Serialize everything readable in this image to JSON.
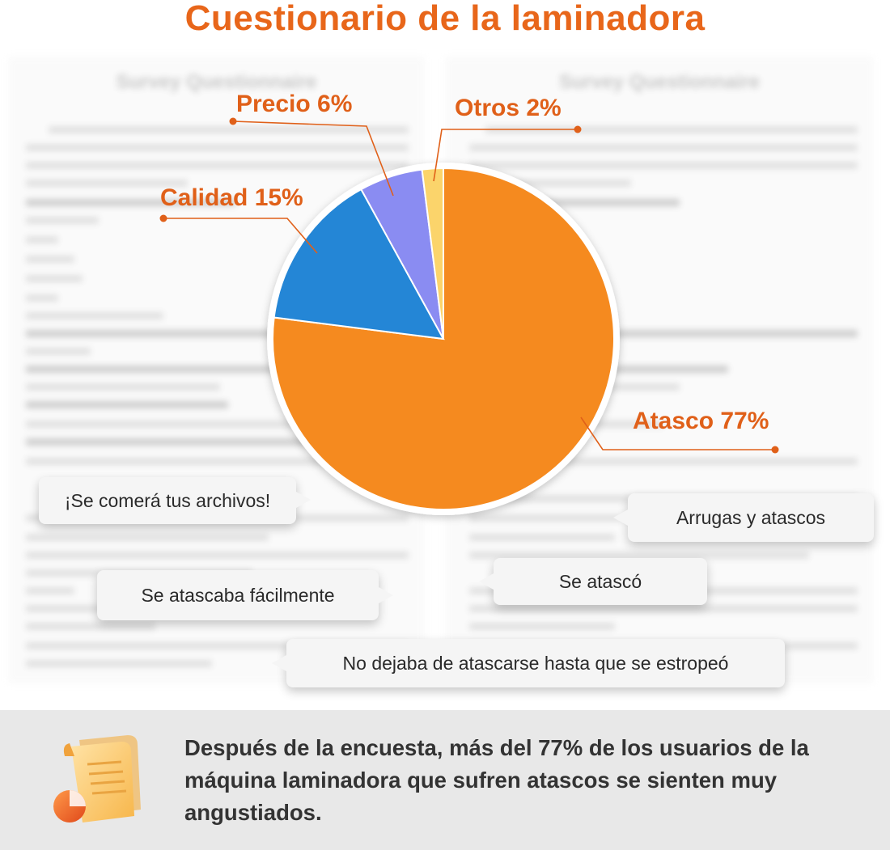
{
  "colors": {
    "title": "#e8661a",
    "label": "#e06019",
    "atasco": "#f58a1f",
    "calidad": "#2486d6",
    "precio": "#8a8cf2",
    "otros": "#fbd46b"
  },
  "title": "Cuestionario de la laminadora",
  "background_doc": {
    "left_heading": "Survey Questionnaire",
    "right_heading": "Survey Questionnaire"
  },
  "chart_data": {
    "type": "pie",
    "title": "",
    "slices": [
      {
        "name": "Atasco",
        "value": 77,
        "label": "Atasco 77%",
        "color": "#f58a1f"
      },
      {
        "name": "Calidad",
        "value": 15,
        "label": "Calidad 15%",
        "color": "#2486d6"
      },
      {
        "name": "Precio",
        "value": 6,
        "label": "Precio 6%",
        "color": "#8a8cf2"
      },
      {
        "name": "Otros",
        "value": 2,
        "label": "Otros 2%",
        "color": "#fbd46b"
      }
    ],
    "legend": "none"
  },
  "bubbles": {
    "comera": "¡Se comerá tus archivos!",
    "arrugas": "Arrugas y atascos",
    "atascaba": "Se atascaba fácilmente",
    "atasco": "Se atascó",
    "no_dejaba": "No dejaba de atascarse hasta que se estropeó"
  },
  "summary": "Después de la encuesta, más del 77% de los usuarios de la máquina laminadora que sufren atascos se sienten muy angustiados.",
  "icons": {
    "summary_icon": "report-chart-icon"
  }
}
